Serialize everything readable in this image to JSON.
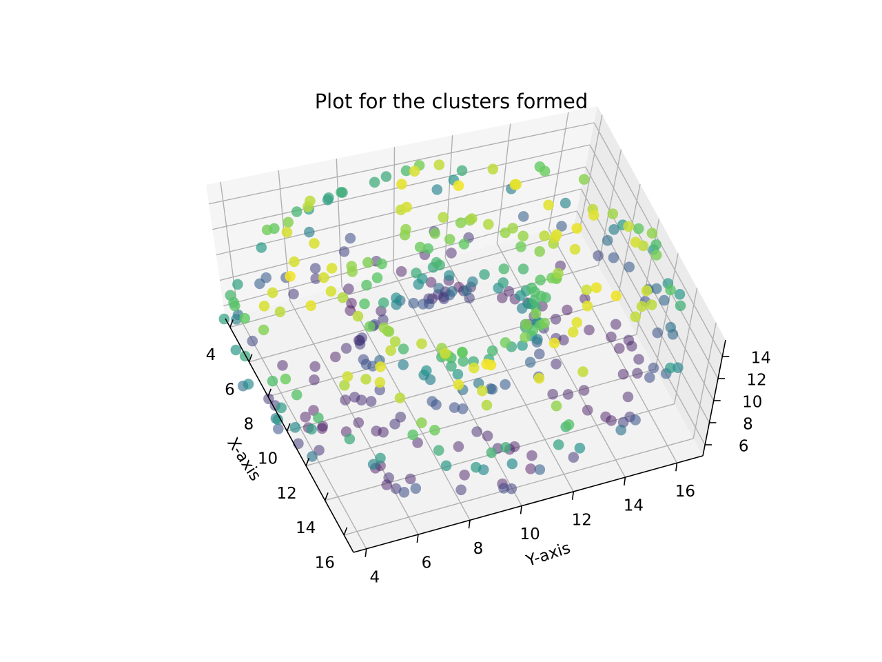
{
  "chart_data": {
    "type": "scatter",
    "projection": "3d",
    "title": "Plot for the clusters formed",
    "xlabel": "X-axis",
    "ylabel": "Y-axis",
    "zlabel": "",
    "xlim": [
      3.5,
      17.0
    ],
    "ylim": [
      3.5,
      17.0
    ],
    "zlim": [
      5.0,
      15.5
    ],
    "xticks": [
      "4",
      "6",
      "8",
      "10",
      "12",
      "14",
      "16"
    ],
    "yticks": [
      "4",
      "6",
      "8",
      "10",
      "12",
      "14",
      "16"
    ],
    "zticks": [
      "6",
      "8",
      "10",
      "12",
      "14"
    ],
    "grid": true,
    "colormap": "viridis",
    "colormap_stops": [
      "#440154",
      "#3b528b",
      "#21918c",
      "#5ec962",
      "#fde725"
    ],
    "pane_color": "#f2f2f2",
    "grid_color": "#b0b0b0",
    "n_points": 400,
    "structure": "Points lie on a torus-shaped ring around the centre (x≈10, y≈10, z≈10); colour encodes depth (z), from dark purple at low z to yellow at high z."
  }
}
